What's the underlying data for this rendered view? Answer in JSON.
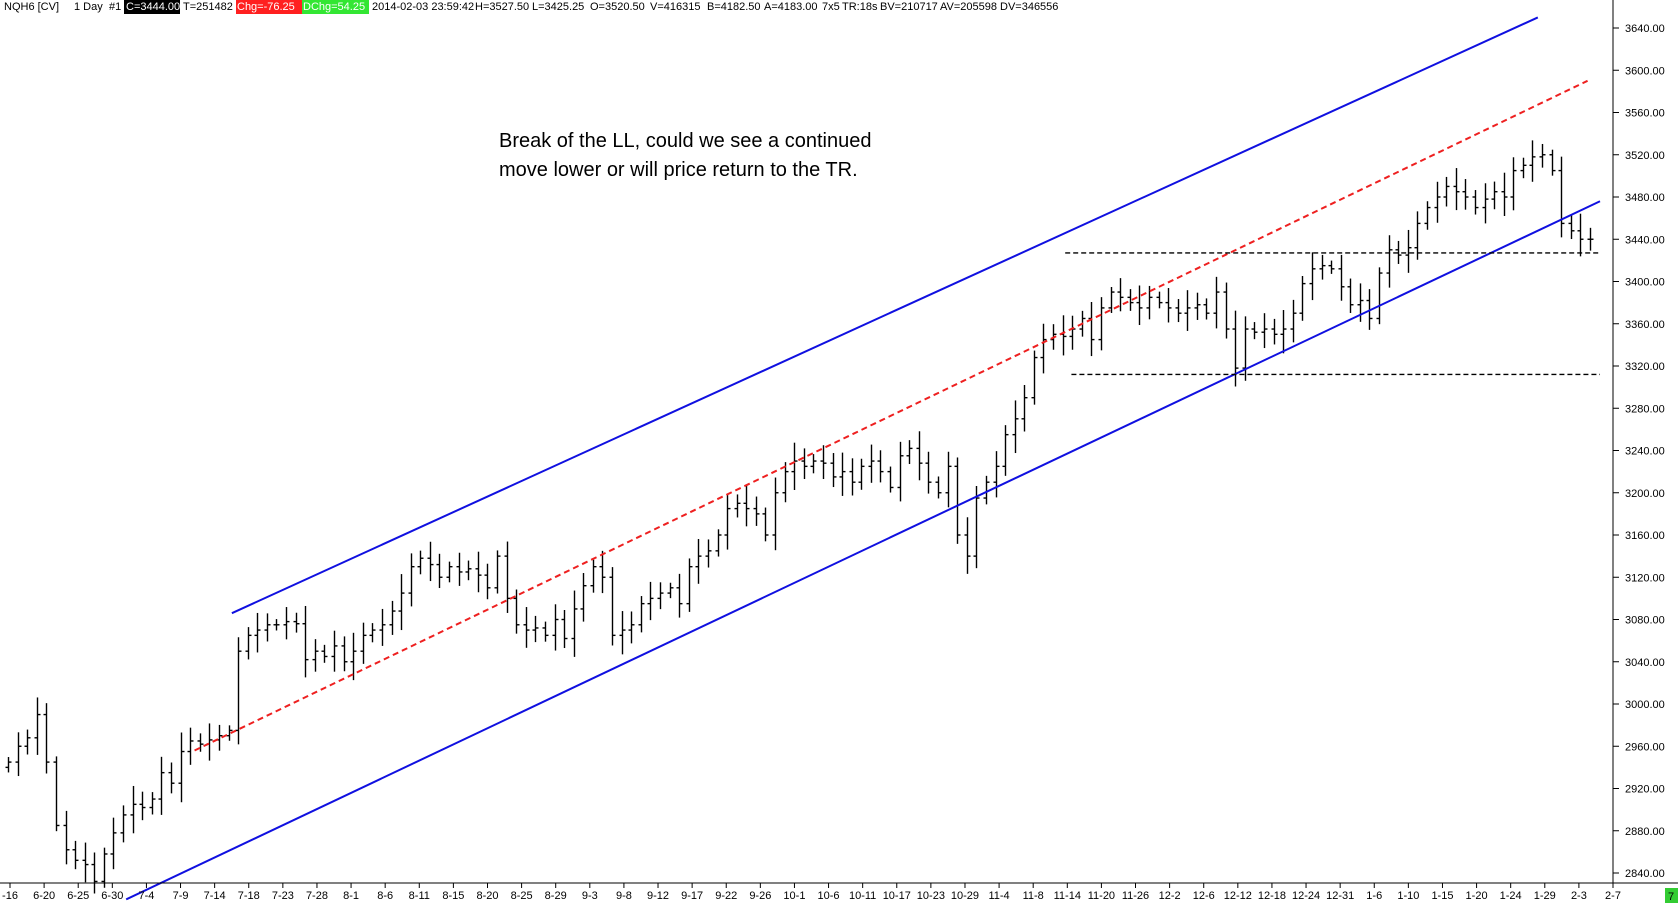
{
  "header": {
    "symbol": "NQH6 [CV]",
    "interval": "1 Day",
    "chart_no": "#1",
    "close_label": "C=3444.00",
    "tick_label": "T=251482",
    "chg_label": "Chg=-76.25",
    "dchg_label": "DChg=54.25",
    "datetime": "2014-02-03 23:59:42",
    "high_label": "H=3527.50",
    "low_label": "L=3425.25",
    "open_label": "O=3520.50",
    "volume_label": "V=416315",
    "bid_label": "B=4182.50",
    "ask_label": "A=4183.00",
    "size_label": "7x5",
    "tr_label": "TR:18s",
    "bv_label": "BV=210717",
    "av_label": "AV=205598",
    "dv_label": "DV=346556",
    "colors": {
      "close_bg": "#000000",
      "chg_bg": "#ff2020",
      "dchg_bg": "#33e633"
    }
  },
  "corner_badge": "7",
  "chart_data": {
    "type": "ohlc",
    "annotation": {
      "line1": "Break of the LL, could we see a continued",
      "line2": "move lower or will price return to the TR."
    },
    "ylim": [
      2805,
      3665
    ],
    "y_ticks": [
      2840,
      2880,
      2920,
      2960,
      3000,
      3040,
      3080,
      3120,
      3160,
      3200,
      3240,
      3280,
      3320,
      3360,
      3400,
      3440,
      3480,
      3520,
      3560,
      3600,
      3640
    ],
    "x_tick_labels": [
      "-16",
      "6-20",
      "6-25",
      "6-30",
      "7-4",
      "7-9",
      "7-14",
      "7-18",
      "7-23",
      "7-28",
      "8-1",
      "8-6",
      "8-11",
      "8-15",
      "8-20",
      "8-25",
      "8-29",
      "9-3",
      "9-8",
      "9-12",
      "9-17",
      "9-22",
      "9-26",
      "10-1",
      "10-6",
      "10-11",
      "10-17",
      "10-23",
      "10-29",
      "11-4",
      "11-8",
      "11-14",
      "11-20",
      "11-26",
      "12-2",
      "12-6",
      "12-12",
      "12-18",
      "12-24",
      "12-31",
      "1-6",
      "1-10",
      "1-15",
      "1-20",
      "1-24",
      "1-29",
      "2-3",
      "2-7"
    ],
    "bar_count": 166,
    "closes": [
      2945,
      2960,
      2968,
      2990,
      2945,
      2885,
      2862,
      2852,
      2848,
      2832,
      2858,
      2878,
      2895,
      2905,
      2902,
      2910,
      2935,
      2925,
      2955,
      2965,
      2962,
      2966,
      2970,
      2975,
      3050,
      3065,
      3070,
      3075,
      3075,
      3078,
      3076,
      3042,
      3050,
      3045,
      3055,
      3040,
      3050,
      3065,
      3070,
      3075,
      3088,
      3105,
      3130,
      3138,
      3132,
      3120,
      3130,
      3125,
      3128,
      3122,
      3110,
      3140,
      3100,
      3075,
      3070,
      3072,
      3065,
      3080,
      3062,
      3090,
      3112,
      3130,
      3120,
      3065,
      3070,
      3075,
      3095,
      3100,
      3105,
      3110,
      3095,
      3130,
      3140,
      3145,
      3160,
      3185,
      3190,
      3185,
      3180,
      3160,
      3200,
      3220,
      3230,
      3225,
      3230,
      3228,
      3215,
      3220,
      3210,
      3225,
      3230,
      3220,
      3205,
      3235,
      3242,
      3228,
      3210,
      3200,
      3225,
      3160,
      3140,
      3195,
      3210,
      3225,
      3255,
      3270,
      3290,
      3328,
      3345,
      3350,
      3348,
      3355,
      3365,
      3345,
      3375,
      3390,
      3385,
      3380,
      3375,
      3385,
      3380,
      3375,
      3370,
      3375,
      3378,
      3370,
      3390,
      3355,
      3318,
      3355,
      3352,
      3355,
      3350,
      3355,
      3370,
      3398,
      3412,
      3415,
      3412,
      3395,
      3378,
      3382,
      3365,
      3408,
      3430,
      3425,
      3432,
      3455,
      3470,
      3480,
      3490,
      3485,
      3480,
      3470,
      3478,
      3485,
      3480,
      3505,
      3510,
      3518,
      3520,
      3505,
      3455,
      3448,
      3440,
      3440
    ],
    "resistance_line": {
      "start": {
        "bar": 36,
        "price": 3086
      },
      "end": {
        "bar": 246,
        "price": 3650
      }
    },
    "support_line": {
      "start": {
        "bar": 19,
        "price": 2815
      },
      "end": {
        "bar": 256,
        "price": 3476
      }
    },
    "midline": {
      "start": {
        "bar": 30,
        "price": 2956
      },
      "end": {
        "bar": 254,
        "price": 3590
      }
    },
    "range_top": {
      "from_bar": 170,
      "to_bar": 256,
      "price": 3427
    },
    "range_bottom": {
      "from_bar": 171,
      "to_bar": 256,
      "price": 3312
    },
    "colors": {
      "channel": "#1010e0",
      "midline": "#ee2020",
      "range": "#000000",
      "bars": "#000000"
    }
  }
}
